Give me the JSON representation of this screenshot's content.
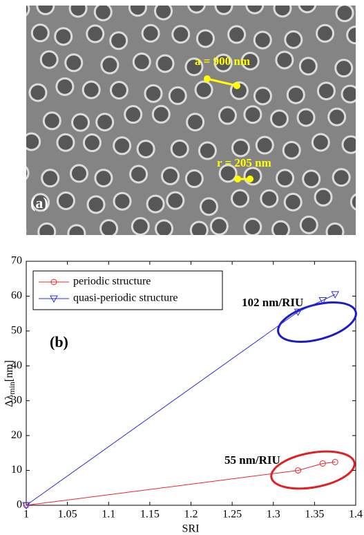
{
  "image": {
    "panel_label": "(a)",
    "annotations": [
      "a = 900 nm",
      "r = 205 nm"
    ]
  },
  "chart_data": {
    "type": "line",
    "panel_label": "(b)",
    "x_label": "SRI",
    "y_label": "Δλ",
    "y_label_sub": "min",
    "y_label_unit": "[nm]",
    "x": [
      1,
      1.33,
      1.36,
      1.375
    ],
    "series": [
      {
        "name": "periodic structure",
        "color": "#e8262a",
        "marker": "circle",
        "values": [
          0,
          10,
          12,
          12.4
        ]
      },
      {
        "name": "quasi-periodic structure",
        "color": "#2b2bd8",
        "marker": "triangle-down",
        "values": [
          0,
          55.5,
          58.8,
          60.5
        ]
      }
    ],
    "annotations": [
      {
        "text": "102 nm/RIU",
        "color": "#1f1fc8"
      },
      {
        "text": "55 nm/RIU",
        "color": "#e02020"
      }
    ],
    "xlim": [
      1,
      1.4
    ],
    "xticks": [
      1,
      1.05,
      1.1,
      1.15,
      1.2,
      1.25,
      1.3,
      1.35,
      1.4
    ],
    "ylim": [
      0,
      70
    ],
    "yticks": [
      0,
      10,
      20,
      30,
      40,
      50,
      60,
      70
    ],
    "legend": "upper left",
    "grid": false
  }
}
